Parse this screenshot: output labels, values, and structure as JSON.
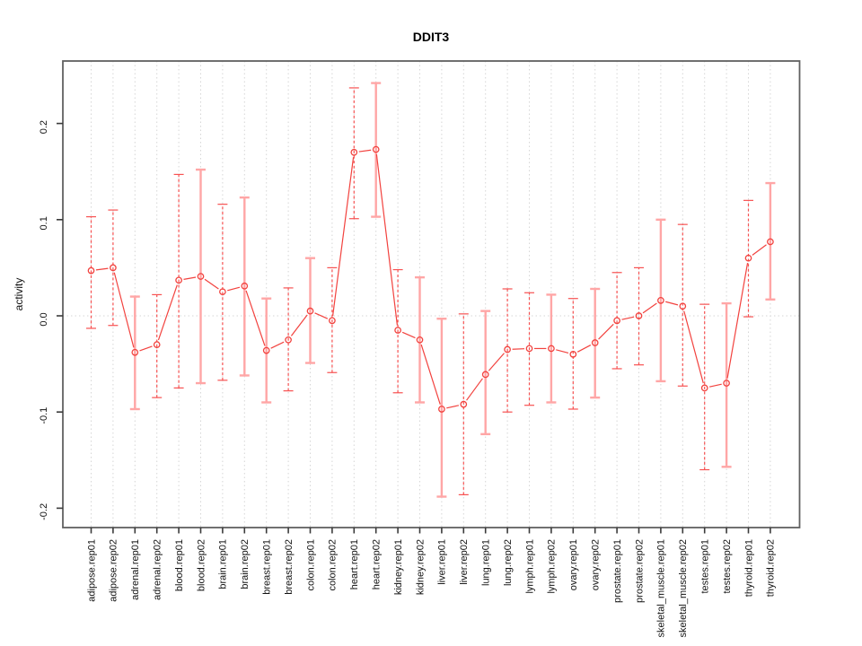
{
  "chart_data": {
    "type": "line",
    "title": "DDIT3",
    "xlabel": "",
    "ylabel": "activity",
    "ylim": [
      -0.22,
      0.265
    ],
    "yticks": [
      -0.2,
      -0.1,
      0.0,
      0.1,
      0.2
    ],
    "grid": "vertical dotted gridline at every category; dotted horizontal line at y=0",
    "legend_position": "none",
    "marker": "open-circle",
    "categories": [
      "adipose.rep01",
      "adipose.rep02",
      "adrenal.rep01",
      "adrenal.rep02",
      "blood.rep01",
      "blood.rep02",
      "brain.rep01",
      "brain.rep02",
      "breast.rep01",
      "breast.rep02",
      "colon.rep01",
      "colon.rep02",
      "heart.rep01",
      "heart.rep02",
      "kidney.rep01",
      "kidney.rep02",
      "liver.rep01",
      "liver.rep02",
      "lung.rep01",
      "lung.rep02",
      "lymph.rep01",
      "lymph.rep02",
      "ovary.rep01",
      "ovary.rep02",
      "prostate.rep01",
      "prostate.rep02",
      "skeletal_muscle.rep01",
      "skeletal_muscle.rep02",
      "testes.rep01",
      "testes.rep02",
      "thyroid.rep01",
      "thyroid.rep02"
    ],
    "series": [
      {
        "name": "activity",
        "values": [
          0.047,
          0.05,
          -0.038,
          -0.03,
          0.037,
          0.041,
          0.025,
          0.031,
          -0.036,
          -0.025,
          0.005,
          -0.005,
          0.17,
          0.173,
          -0.015,
          -0.025,
          -0.097,
          -0.092,
          -0.061,
          -0.035,
          -0.034,
          -0.034,
          -0.04,
          -0.028,
          -0.005,
          0.0,
          0.016,
          0.01,
          -0.075,
          -0.07,
          0.06,
          0.077
        ],
        "error_lower": [
          -0.013,
          -0.01,
          -0.097,
          -0.085,
          -0.075,
          -0.07,
          -0.067,
          -0.062,
          -0.09,
          -0.078,
          -0.049,
          -0.059,
          0.101,
          0.103,
          -0.08,
          -0.09,
          -0.188,
          -0.186,
          -0.123,
          -0.1,
          -0.093,
          -0.09,
          -0.097,
          -0.085,
          -0.055,
          -0.051,
          -0.068,
          -0.073,
          -0.16,
          -0.157,
          -0.001,
          0.017
        ],
        "error_upper": [
          0.103,
          0.11,
          0.02,
          0.022,
          0.147,
          0.152,
          0.116,
          0.123,
          0.018,
          0.029,
          0.06,
          0.05,
          0.237,
          0.242,
          0.048,
          0.04,
          -0.003,
          0.002,
          0.005,
          0.028,
          0.024,
          0.022,
          0.018,
          0.028,
          0.045,
          0.05,
          0.1,
          0.095,
          0.012,
          0.013,
          0.12,
          0.138
        ],
        "error_bar_styles": [
          "dashed",
          "dashed",
          "solid",
          "dashed",
          "dashed",
          "solid",
          "dashed",
          "solid",
          "solid",
          "dashed",
          "solid",
          "dashed",
          "dashed",
          "solid",
          "dashed",
          "solid",
          "solid",
          "dashed",
          "solid",
          "dashed",
          "dashed",
          "solid",
          "dashed",
          "solid",
          "dashed",
          "dashed",
          "solid",
          "dashed",
          "dashed",
          "solid",
          "dashed",
          "solid"
        ]
      }
    ],
    "colors": {
      "line": "#f2423e",
      "marker": "#f2423e",
      "error_bar_dashed": "#f75252",
      "error_bar_solid": "#ffa6a6",
      "grid": "#d6d6d6",
      "frame": "#616161",
      "tick": "#3a3a3a",
      "text": "#111111"
    }
  }
}
